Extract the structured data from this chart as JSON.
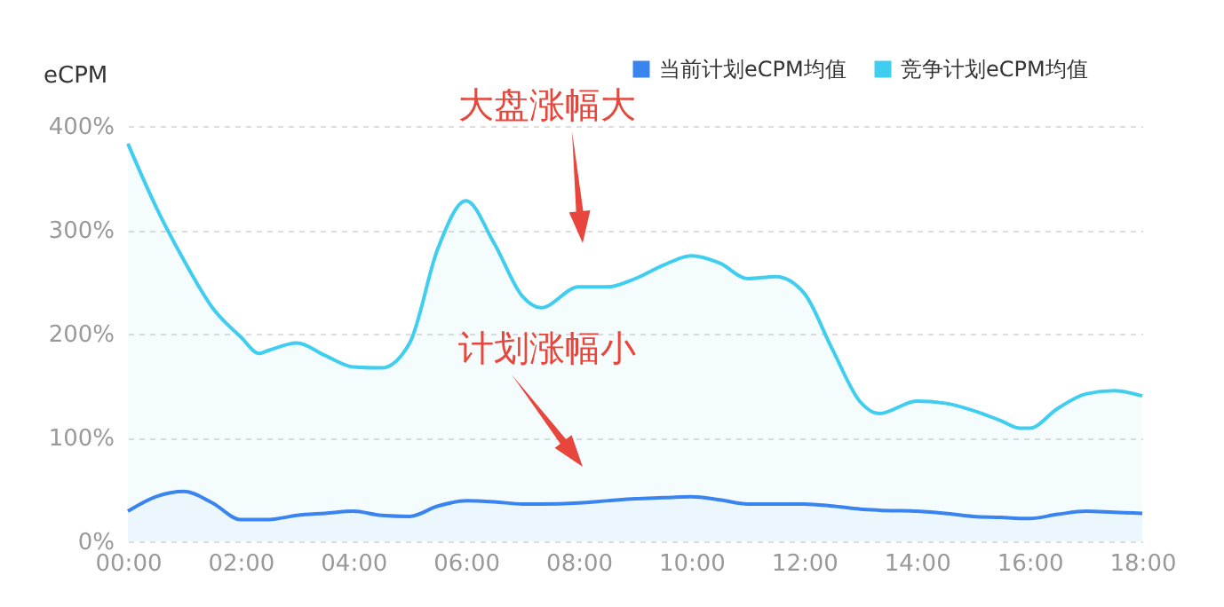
{
  "chart_data": {
    "type": "area",
    "ylabel": "eCPM",
    "legend": "top right",
    "grid": "y",
    "marker": "none",
    "line_style": "solid",
    "x": [
      0,
      0.5,
      1,
      1.5,
      2,
      2.33,
      2.5,
      3,
      3.5,
      4,
      4.5,
      5,
      5.5,
      6,
      6.5,
      7,
      7.33,
      8,
      8.5,
      9,
      9.5,
      10,
      10.5,
      11,
      11.5,
      12,
      12.5,
      13,
      13.33,
      14,
      14.5,
      15,
      15.5,
      15.83,
      16,
      16.5,
      17,
      17.5,
      18
    ],
    "xlim": [
      0,
      18
    ],
    "xticks": [
      {
        "value": 0,
        "label": "00:00"
      },
      {
        "value": 2,
        "label": "02:00"
      },
      {
        "value": 4,
        "label": "04:00"
      },
      {
        "value": 6,
        "label": "06:00"
      },
      {
        "value": 8,
        "label": "08:00"
      },
      {
        "value": 10,
        "label": "10:00"
      },
      {
        "value": 12,
        "label": "12:00"
      },
      {
        "value": 14,
        "label": "14:00"
      },
      {
        "value": 16,
        "label": "16:00"
      },
      {
        "value": 18,
        "label": "18:00"
      }
    ],
    "ylim": [
      0,
      400
    ],
    "yticks": [
      {
        "value": 0,
        "label": "0%"
      },
      {
        "value": 100,
        "label": "100%"
      },
      {
        "value": 200,
        "label": "200%"
      },
      {
        "value": 300,
        "label": "300%"
      },
      {
        "value": 400,
        "label": "400%"
      }
    ],
    "series": [
      {
        "name": "当前计划eCPM均值",
        "color": "#3a84f0",
        "values": [
          29,
          43,
          48,
          37,
          21,
          21,
          21,
          25,
          27,
          29,
          25,
          24,
          34,
          39,
          38,
          36,
          36,
          37,
          39,
          41,
          42,
          43,
          40,
          36,
          36,
          36,
          34,
          31,
          30,
          29,
          27,
          24,
          23,
          22,
          22,
          26,
          29,
          28,
          27
        ]
      },
      {
        "name": "竞争计划eCPM均值",
        "color": "#3fcdf0",
        "values": [
          383,
          322,
          270,
          225,
          197,
          181,
          184,
          191,
          179,
          168,
          167,
          191,
          282,
          328,
          287,
          236,
          225,
          245,
          245,
          253,
          266,
          275,
          268,
          253,
          255,
          239,
          185,
          134,
          123,
          135,
          133,
          126,
          116,
          109,
          109,
          128,
          142,
          145,
          140
        ]
      }
    ],
    "annotations": [
      "大盘涨幅大",
      "计划涨幅小"
    ]
  }
}
